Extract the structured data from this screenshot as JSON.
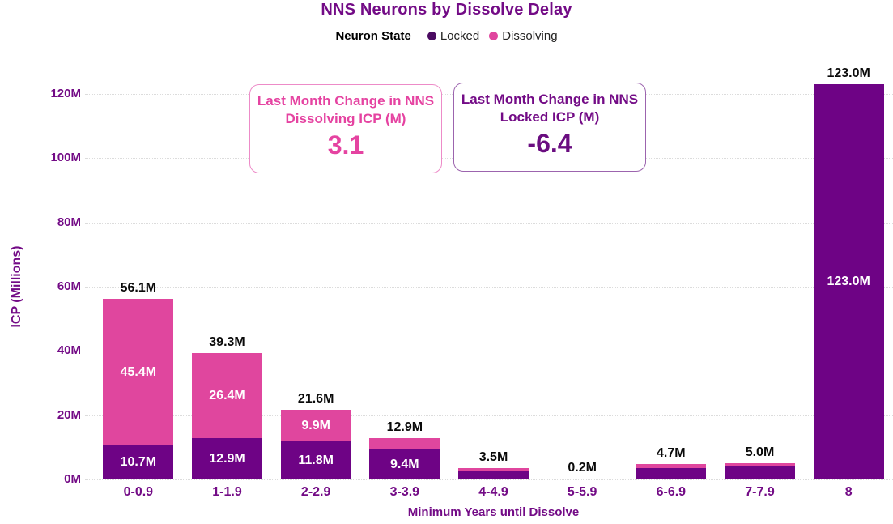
{
  "title": "NNS Neurons by Dissolve Delay",
  "legend": {
    "title": "Neuron State",
    "items": [
      {
        "label": "Locked",
        "color": "#4b0b61"
      },
      {
        "label": "Dissolving",
        "color": "#e0469e"
      }
    ]
  },
  "cards": [
    {
      "title": "Last Month Change in NNS Dissolving ICP (M)",
      "value": "3.1",
      "accent": "#e543a1",
      "value_color": "#e543a1",
      "border": "#ed8bc8"
    },
    {
      "title": "Last Month Change in NNS Locked ICP (M)",
      "value": "-6.4",
      "accent": "#730b86",
      "value_color": "#6a0d80",
      "border": "#9c64ae"
    }
  ],
  "chart_data": {
    "type": "bar",
    "stacked": true,
    "title": "NNS Neurons by Dissolve Delay",
    "xlabel": "Minimum Years until Dissolve",
    "ylabel": "ICP (Millions)",
    "ylim": [
      0,
      130
    ],
    "grid": "horizontal dotted",
    "legend_position": "top",
    "categories": [
      "0-0.9",
      "1-1.9",
      "2-2.9",
      "3-3.9",
      "4-4.9",
      "5-5.9",
      "6-6.9",
      "7-7.9",
      "8"
    ],
    "series": [
      {
        "name": "Locked",
        "color": "#6e0385",
        "values": [
          10.7,
          12.9,
          11.8,
          9.4,
          2.5,
          0,
          3.5,
          4.2,
          123.0
        ]
      },
      {
        "name": "Dissolving",
        "color": "#e0469e",
        "values": [
          45.4,
          26.4,
          9.9,
          3.5,
          1.0,
          0.2,
          1.2,
          0.8,
          0
        ]
      }
    ],
    "totals": [
      56.1,
      39.3,
      21.6,
      12.9,
      3.5,
      0.2,
      4.7,
      5.0,
      123.0
    ],
    "total_labels": [
      "56.1M",
      "39.3M",
      "21.6M",
      "12.9M",
      "3.5M",
      "0.2M",
      "4.7M",
      "5.0M",
      "123.0M"
    ],
    "segment_labels": {
      "locked": [
        "10.7M",
        "12.9M",
        "11.8M",
        "9.4M",
        "",
        "",
        "",
        "",
        "123.0M"
      ],
      "dissolving": [
        "45.4M",
        "26.4M",
        "9.9M",
        "",
        "",
        "",
        "",
        "",
        ""
      ]
    },
    "y_ticks": [
      {
        "value": 0,
        "label": "0M"
      },
      {
        "value": 20,
        "label": "20M"
      },
      {
        "value": 40,
        "label": "40M"
      },
      {
        "value": 60,
        "label": "60M"
      },
      {
        "value": 80,
        "label": "80M"
      },
      {
        "value": 100,
        "label": "100M"
      },
      {
        "value": 120,
        "label": "120M"
      }
    ]
  }
}
